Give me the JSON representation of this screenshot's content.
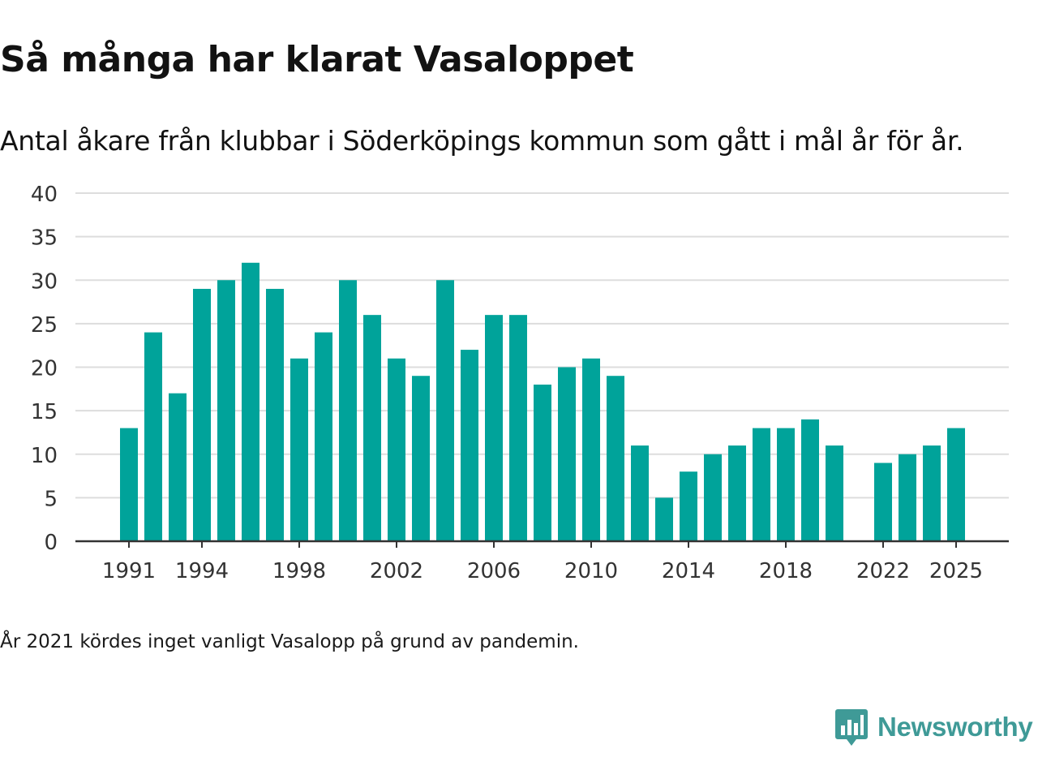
{
  "title": "Så många har klarat Vasaloppet",
  "subtitle": "Antal åkare från klubbar i Söderköpings kommun som gått i mål år för år.",
  "note": "År 2021 kördes inget vanligt Vasalopp på grund av pandemin.",
  "brand": {
    "name": "Newsworthy",
    "color": "#3f9a97"
  },
  "colors": {
    "bar": "#00a39a",
    "grid": "#dddddd",
    "axis": "#333333",
    "text": "#333333"
  },
  "chart_data": {
    "type": "bar",
    "title": "Så många har klarat Vasaloppet",
    "subtitle": "Antal åkare från klubbar i Söderköpings kommun som gått i mål år för år.",
    "xlabel": "",
    "ylabel": "",
    "ylim": [
      0,
      40
    ],
    "yticks": [
      0,
      5,
      10,
      15,
      20,
      25,
      30,
      35,
      40
    ],
    "xticks": [
      "1991",
      "1994",
      "1998",
      "2002",
      "2006",
      "2010",
      "2014",
      "2018",
      "2022",
      "2025"
    ],
    "grid": true,
    "categories": [
      "1991",
      "1992",
      "1993",
      "1994",
      "1995",
      "1996",
      "1997",
      "1998",
      "1999",
      "2000",
      "2001",
      "2002",
      "2003",
      "2004",
      "2005",
      "2006",
      "2007",
      "2008",
      "2009",
      "2010",
      "2011",
      "2012",
      "2013",
      "2014",
      "2015",
      "2016",
      "2017",
      "2018",
      "2019",
      "2020",
      "2021",
      "2022",
      "2023",
      "2024",
      "2025"
    ],
    "values": [
      13,
      24,
      17,
      29,
      30,
      32,
      29,
      21,
      24,
      30,
      26,
      21,
      19,
      30,
      22,
      26,
      26,
      18,
      20,
      21,
      19,
      11,
      5,
      8,
      10,
      11,
      13,
      13,
      14,
      11,
      null,
      9,
      10,
      11,
      13
    ]
  }
}
